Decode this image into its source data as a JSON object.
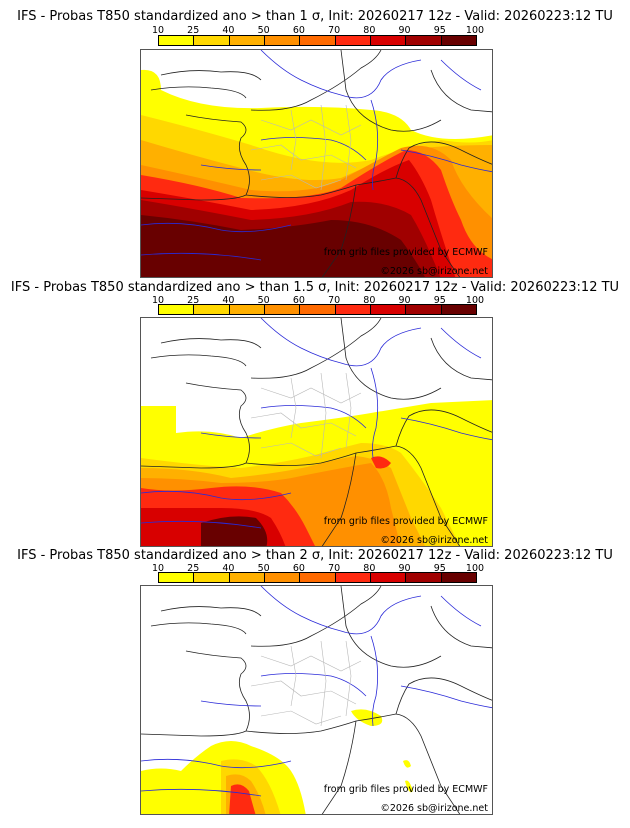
{
  "colorbar": {
    "ticks": [
      "10",
      "25",
      "40",
      "50",
      "60",
      "70",
      "80",
      "90",
      "95",
      "100"
    ],
    "colors": [
      "#ffff00",
      "#ffd800",
      "#ffb000",
      "#ff9000",
      "#ff6a00",
      "#ff2a10",
      "#d80000",
      "#a00000",
      "#680000"
    ]
  },
  "panels": [
    {
      "title": "IFS - Probas T850  standardized ano > than 1 σ, Init: 20260217 12z - Valid: 20260223:12 TU",
      "threshold": "1 σ"
    },
    {
      "title": "IFS - Probas T850  standardized ano > than 1.5 σ, Init: 20260217 12z - Valid: 20260223:12 TU",
      "threshold": "1.5 σ"
    },
    {
      "title": "IFS - Probas T850  standardized ano > than 2 σ, Init: 20260217 12z - Valid: 20260223:12 TU",
      "threshold": "2 σ"
    }
  ],
  "credits": {
    "source": "from grib files provided by ECMWF",
    "copyright": "©2026 sb@irizone.net"
  }
}
